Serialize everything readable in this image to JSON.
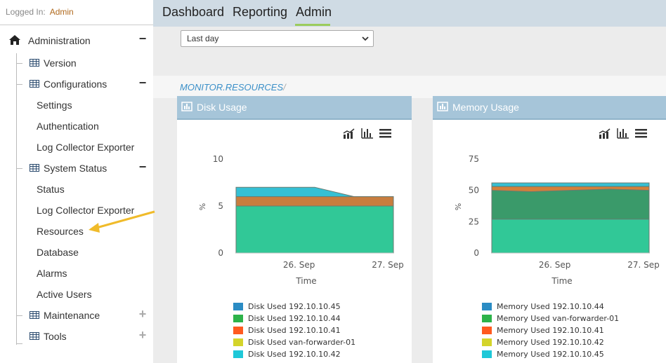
{
  "login": {
    "label": "Logged In:",
    "user": "Admin"
  },
  "sidebar": {
    "root": "Administration",
    "version": "Version",
    "configurations": "Configurations",
    "config_items": [
      "Settings",
      "Authentication",
      "Log Collector Exporter"
    ],
    "system_status": "System Status",
    "status_items": [
      "Status",
      "Log Collector Exporter",
      "Resources",
      "Database",
      "Alarms",
      "Active Users"
    ],
    "maintenance": "Maintenance",
    "tools": "Tools"
  },
  "nav": {
    "tabs": [
      "Dashboard",
      "Reporting",
      "Admin"
    ],
    "active": "Admin"
  },
  "filter": {
    "selected": "Last day"
  },
  "breadcrumb": {
    "text": "MONITOR.RESOURCES",
    "sep": "/"
  },
  "panels": {
    "disk": {
      "title": "Disk Usage",
      "legend": [
        "Disk Used 192.10.10.45",
        "Disk Used 192.10.10.44",
        "Disk Used 192.10.10.41",
        "Disk Used van-forwarder-01",
        "Disk Used 192.10.10.42"
      ]
    },
    "memory": {
      "title": "Memory Usage",
      "legend": [
        "Memory Used 192.10.10.44",
        "Memory Used van-forwarder-01",
        "Memory Used 192.10.10.41",
        "Memory Used 192.10.10.42",
        "Memory Used 192.10.10.45"
      ]
    }
  },
  "chart_data": [
    {
      "type": "area",
      "title": "Disk Usage",
      "xlabel": "Time",
      "ylabel": "%",
      "x_ticks": [
        "26. Sep",
        "27. Sep"
      ],
      "y_ticks": [
        "0",
        "5",
        "10"
      ],
      "ylim": [
        0,
        10
      ],
      "legend_position": "bottom",
      "series": [
        {
          "name": "Disk Used 192.10.10.45",
          "color": "#2b8cc4",
          "values": [
            7,
            7,
            7,
            6,
            6
          ]
        },
        {
          "name": "Disk Used 192.10.10.44",
          "color": "#2db34a",
          "values": [
            6,
            6,
            6,
            6,
            6
          ]
        },
        {
          "name": "Disk Used 192.10.10.41",
          "color": "#ff5a1f",
          "values": [
            5,
            5,
            5,
            5,
            5
          ]
        },
        {
          "name": "Disk Used van-forwarder-01",
          "color": "#d4d42a",
          "values": [
            5,
            5,
            5,
            5,
            5
          ]
        },
        {
          "name": "Disk Used 192.10.10.42",
          "color": "#1ec8d8",
          "values": [
            5,
            5,
            5,
            5,
            5
          ]
        }
      ]
    },
    {
      "type": "area",
      "title": "Memory Usage",
      "xlabel": "Time",
      "ylabel": "%",
      "x_ticks": [
        "26. Sep",
        "27. Sep"
      ],
      "y_ticks": [
        "0",
        "25",
        "50",
        "75"
      ],
      "ylim": [
        0,
        75
      ],
      "legend_position": "bottom",
      "series": [
        {
          "name": "Memory Used 192.10.10.44",
          "color": "#2b8cc4",
          "values": [
            27,
            27,
            27,
            27,
            27
          ]
        },
        {
          "name": "Memory Used van-forwarder-01",
          "color": "#2db34a",
          "values": [
            50,
            49,
            50,
            51,
            50
          ]
        },
        {
          "name": "Memory Used 192.10.10.41",
          "color": "#ff5a1f",
          "values": [
            53,
            53,
            53,
            53,
            53
          ]
        },
        {
          "name": "Memory Used 192.10.10.42",
          "color": "#d4d42a",
          "values": [
            53,
            53,
            53,
            53,
            53
          ]
        },
        {
          "name": "Memory Used 192.10.10.45",
          "color": "#1ec8d8",
          "values": [
            56,
            56,
            56,
            56,
            56
          ]
        }
      ]
    }
  ]
}
